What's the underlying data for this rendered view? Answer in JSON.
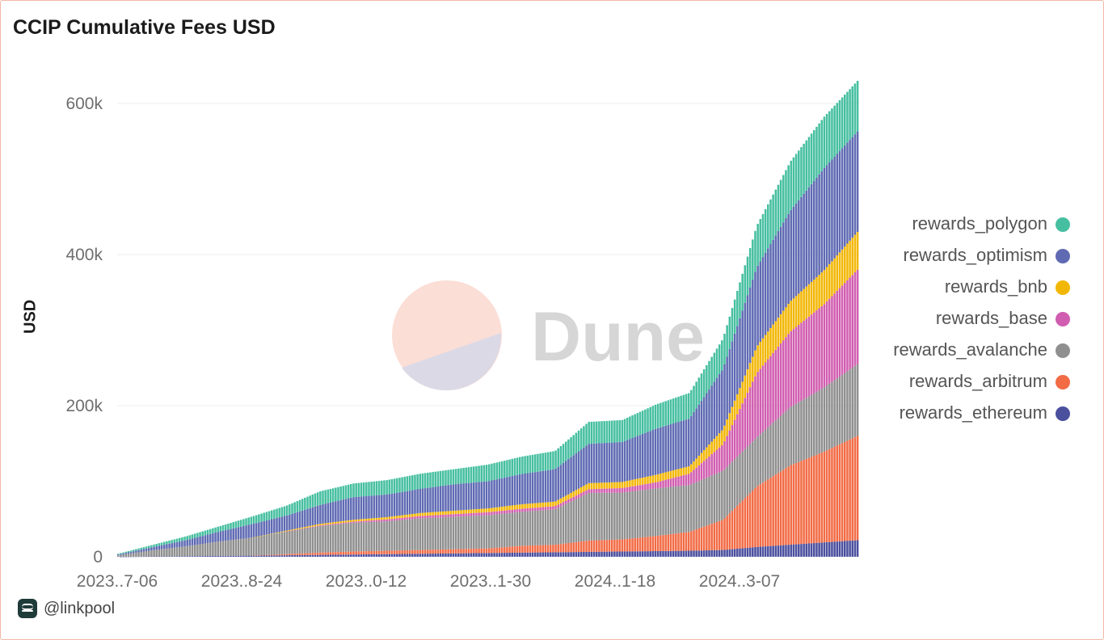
{
  "chart": {
    "title": "CCIP Cumulative Fees USD",
    "watermark": "Dune",
    "author": "@linkpool"
  },
  "chart_data": {
    "type": "bar",
    "stacked": true,
    "title": "CCIP Cumulative Fees USD",
    "xlabel": "",
    "ylabel": "USD",
    "ylim": [
      0,
      630000
    ],
    "y_ticks": [
      0,
      200000,
      400000,
      600000
    ],
    "y_tick_labels": [
      "0",
      "200k",
      "400k",
      "600k"
    ],
    "x_tick_labels": [
      "2023..7-06",
      "2023..8-24",
      "2023..0-12",
      "2023..1-30",
      "2024..1-18",
      "2024..3-07"
    ],
    "grid": true,
    "legend_position": "right",
    "x": [
      "2023-07-06",
      "2023-07-20",
      "2023-08-03",
      "2023-08-17",
      "2023-08-31",
      "2023-09-14",
      "2023-09-28",
      "2023-10-12",
      "2023-10-26",
      "2023-11-09",
      "2023-11-23",
      "2023-12-07",
      "2023-12-21",
      "2024-01-04",
      "2024-01-18",
      "2024-02-01",
      "2024-02-15",
      "2024-02-29",
      "2024-03-14",
      "2024-03-28",
      "2024-04-11",
      "2024-04-25",
      "2024-05-09"
    ],
    "series": [
      {
        "name": "rewards_ethereum",
        "color": "#4a4f9e",
        "values": [
          0,
          500,
          800,
          1200,
          1500,
          2000,
          2500,
          3000,
          3500,
          4000,
          4500,
          5000,
          5500,
          6000,
          6500,
          7000,
          7500,
          8000,
          9000,
          13000,
          16000,
          19000,
          22000
        ]
      },
      {
        "name": "rewards_arbitrum",
        "color": "#f26b45",
        "values": [
          0,
          0,
          0,
          0,
          0,
          1500,
          3000,
          4000,
          4500,
          5000,
          5500,
          6000,
          9000,
          10000,
          15000,
          16000,
          20000,
          25000,
          40000,
          80000,
          105000,
          120000,
          138000
        ]
      },
      {
        "name": "rewards_avalanche",
        "color": "#8f8f8f",
        "values": [
          2000,
          8000,
          13000,
          19000,
          24000,
          30000,
          35000,
          38000,
          39000,
          42000,
          43000,
          44000,
          45000,
          47000,
          63000,
          62000,
          63000,
          62000,
          65000,
          65000,
          77000,
          85000,
          95000
        ]
      },
      {
        "name": "rewards_base",
        "color": "#d15db0",
        "values": [
          0,
          0,
          0,
          0,
          0,
          0,
          1000,
          1500,
          2500,
          3000,
          3500,
          4000,
          4000,
          4000,
          5000,
          6000,
          8000,
          15000,
          35000,
          85000,
          100000,
          110000,
          125000
        ]
      },
      {
        "name": "rewards_bnb",
        "color": "#f2b705",
        "values": [
          0,
          0,
          0,
          0,
          0,
          1000,
          2000,
          2500,
          3000,
          4000,
          4500,
          5000,
          6000,
          6000,
          8000,
          8000,
          10000,
          10000,
          20000,
          35000,
          40000,
          45000,
          50000
        ]
      },
      {
        "name": "rewards_optimism",
        "color": "#5f6ab3",
        "values": [
          1000,
          4000,
          8000,
          13000,
          18000,
          20000,
          25000,
          30000,
          30000,
          32000,
          35000,
          36000,
          40000,
          43000,
          52000,
          53000,
          61000,
          63000,
          80000,
          105000,
          120000,
          135000,
          133000
        ]
      },
      {
        "name": "rewards_polygon",
        "color": "#46bfa0",
        "values": [
          1000,
          3000,
          5000,
          7000,
          10000,
          13000,
          18000,
          18000,
          19000,
          20000,
          20000,
          22000,
          23000,
          24000,
          29000,
          29000,
          32000,
          34000,
          40000,
          55000,
          65000,
          68000,
          67000
        ]
      }
    ]
  },
  "legend": [
    {
      "label": "rewards_polygon",
      "color": "#46bfa0"
    },
    {
      "label": "rewards_optimism",
      "color": "#5f6ab3"
    },
    {
      "label": "rewards_bnb",
      "color": "#f2b705"
    },
    {
      "label": "rewards_base",
      "color": "#d15db0"
    },
    {
      "label": "rewards_avalanche",
      "color": "#8f8f8f"
    },
    {
      "label": "rewards_arbitrum",
      "color": "#f26b45"
    },
    {
      "label": "rewards_ethereum",
      "color": "#4a4f9e"
    }
  ]
}
